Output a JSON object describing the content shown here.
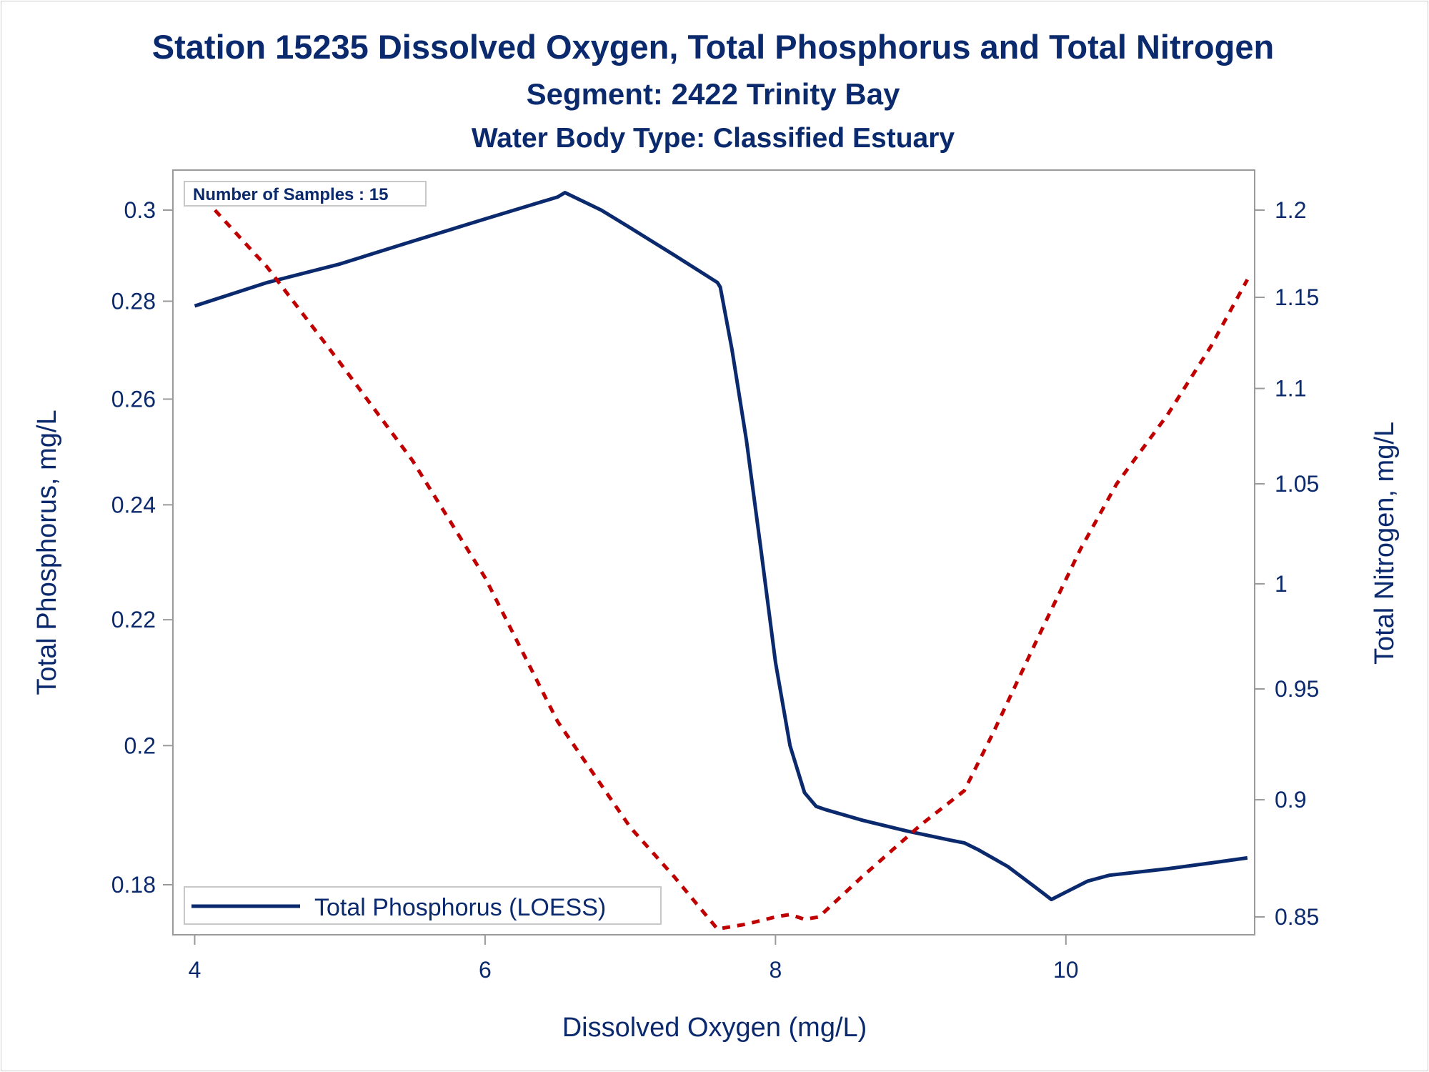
{
  "chart_data": {
    "type": "line",
    "title": "Station 15235  Dissolved Oxygen, Total Phosphorus and Total Nitrogen",
    "subtitle": "Segment: 2422  Trinity Bay",
    "subtitle2": "Water Body Type: Classified Estuary",
    "xlabel": "Dissolved Oxygen (mg/L)",
    "ylabel_left": "Total Phosphorus, mg/L",
    "ylabel_right": "Total Nitrogen, mg/L",
    "annotation": "Number of Samples : 15",
    "xlim": [
      3.85,
      11.3
    ],
    "x_ticks": [
      4,
      6,
      8,
      10
    ],
    "x_tick_labels": [
      "4",
      "6",
      "8",
      "10"
    ],
    "y_left_ticks": [
      0.18,
      0.2,
      0.22,
      0.24,
      0.26,
      0.28,
      0.3
    ],
    "y_left_tick_labels": [
      "0.18",
      "0.2",
      "0.22",
      "0.24",
      "0.26",
      "0.28",
      "0.3"
    ],
    "y_right_ticks": [
      0.85,
      0.9,
      0.95,
      1.0,
      1.05,
      1.1,
      1.15,
      1.2
    ],
    "y_right_tick_labels": [
      "0.85",
      "0.9",
      "0.95",
      "1",
      "1.05",
      "1.1",
      "1.15",
      "1.2"
    ],
    "legend_position": "bottom-left",
    "grid": false,
    "series": [
      {
        "name": "Total Phosphorus (LOESS)",
        "axis": "left",
        "style": "solid",
        "color": "#0b2a6e",
        "points": [
          [
            4.0,
            0.279
          ],
          [
            4.5,
            0.284
          ],
          [
            5.0,
            0.288
          ],
          [
            5.5,
            0.293
          ],
          [
            6.0,
            0.298
          ],
          [
            6.3,
            0.301
          ],
          [
            6.5,
            0.303
          ],
          [
            6.55,
            0.304
          ],
          [
            6.8,
            0.3
          ],
          [
            7.0,
            0.296
          ],
          [
            7.3,
            0.29
          ],
          [
            7.6,
            0.284
          ],
          [
            7.62,
            0.283
          ],
          [
            7.7,
            0.27
          ],
          [
            7.8,
            0.252
          ],
          [
            7.9,
            0.232
          ],
          [
            8.0,
            0.213
          ],
          [
            8.1,
            0.2
          ],
          [
            8.2,
            0.193
          ],
          [
            8.28,
            0.191
          ],
          [
            8.35,
            0.1905
          ],
          [
            8.6,
            0.189
          ],
          [
            8.9,
            0.1875
          ],
          [
            9.2,
            0.1862
          ],
          [
            9.3,
            0.1858
          ],
          [
            9.4,
            0.1848
          ],
          [
            9.6,
            0.1825
          ],
          [
            9.8,
            0.1795
          ],
          [
            9.9,
            0.178
          ],
          [
            10.0,
            0.179
          ],
          [
            10.15,
            0.1805
          ],
          [
            10.3,
            0.1813
          ],
          [
            10.7,
            0.1822
          ],
          [
            11.0,
            0.183
          ],
          [
            11.25,
            0.1837
          ]
        ]
      },
      {
        "name": "",
        "axis": "right",
        "style": "dashed",
        "color": "#c00000",
        "points": [
          [
            4.0,
            1.213
          ],
          [
            4.5,
            1.167
          ],
          [
            5.0,
            1.114
          ],
          [
            5.5,
            1.062
          ],
          [
            6.0,
            1.003
          ],
          [
            6.5,
            0.935
          ],
          [
            7.0,
            0.888
          ],
          [
            7.3,
            0.867
          ],
          [
            7.6,
            0.845
          ],
          [
            7.8,
            0.847
          ],
          [
            8.0,
            0.85
          ],
          [
            8.1,
            0.851
          ],
          [
            8.2,
            0.849
          ],
          [
            8.3,
            0.85
          ],
          [
            8.6,
            0.867
          ],
          [
            9.0,
            0.889
          ],
          [
            9.3,
            0.904
          ],
          [
            9.5,
            0.93
          ],
          [
            9.8,
            0.973
          ],
          [
            10.1,
            1.017
          ],
          [
            10.35,
            1.05
          ],
          [
            10.7,
            1.086
          ],
          [
            11.0,
            1.123
          ],
          [
            11.25,
            1.16
          ]
        ]
      }
    ]
  }
}
